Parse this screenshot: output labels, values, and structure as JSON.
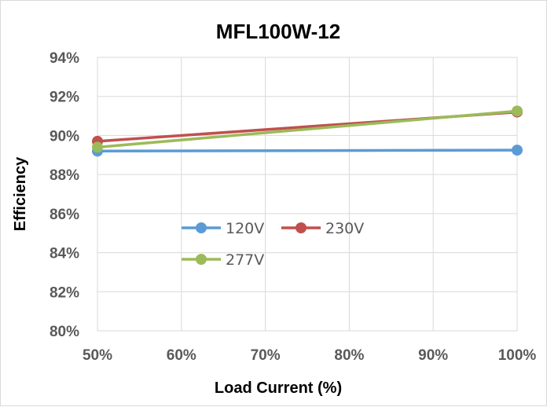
{
  "chart_data": {
    "type": "line",
    "title": "MFL100W-12",
    "xlabel": "Load Current (%)",
    "ylabel": "Efficiency",
    "x": [
      50,
      100
    ],
    "x_tick_values": [
      50,
      60,
      70,
      80,
      90,
      100
    ],
    "x_tick_labels": [
      "50%",
      "60%",
      "70%",
      "80%",
      "90%",
      "100%"
    ],
    "y_tick_values": [
      80,
      82,
      84,
      86,
      88,
      90,
      92,
      94
    ],
    "y_tick_labels": [
      "80%",
      "82%",
      "84%",
      "86%",
      "88%",
      "90%",
      "92%",
      "94%"
    ],
    "xlim": [
      50,
      100
    ],
    "ylim": [
      80,
      94
    ],
    "grid": true,
    "legend_position": "inside-center-left",
    "series": [
      {
        "name": "120V",
        "values": [
          89.2,
          89.25
        ],
        "color": "#5b9bd5"
      },
      {
        "name": "230V",
        "values": [
          89.7,
          91.2
        ],
        "color": "#c0504d"
      },
      {
        "name": "277V",
        "values": [
          89.4,
          91.25
        ],
        "color": "#9bbb59"
      }
    ]
  }
}
